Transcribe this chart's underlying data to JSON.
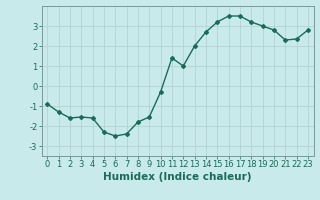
{
  "x_vals": [
    0,
    1,
    2,
    3,
    4,
    5,
    6,
    7,
    8,
    9,
    10,
    11,
    12,
    13,
    14,
    15,
    16,
    17,
    18,
    19,
    20,
    21,
    22,
    23
  ],
  "y_vals": [
    -0.9,
    -1.3,
    -1.6,
    -1.55,
    -1.6,
    -2.3,
    -2.5,
    -2.4,
    -1.8,
    -1.55,
    -0.3,
    1.4,
    1.0,
    2.0,
    2.7,
    3.2,
    3.5,
    3.5,
    3.2,
    3.0,
    2.8,
    2.3,
    2.35,
    2.8
  ],
  "line_color": "#1a6b5a",
  "bg_color": "#c8eaea",
  "grid_color": "#b4d4d4",
  "xlabel": "Humidex (Indice chaleur)",
  "ylim": [
    -3.5,
    4.0
  ],
  "xlim": [
    -0.5,
    23.5
  ],
  "yticks": [
    -3,
    -2,
    -1,
    0,
    1,
    2,
    3
  ],
  "xticks": [
    0,
    1,
    2,
    3,
    4,
    5,
    6,
    7,
    8,
    9,
    10,
    11,
    12,
    13,
    14,
    15,
    16,
    17,
    18,
    19,
    20,
    21,
    22,
    23
  ],
  "tick_fontsize": 6,
  "label_fontsize": 7.5,
  "marker_size": 2.0,
  "line_width": 1.0
}
